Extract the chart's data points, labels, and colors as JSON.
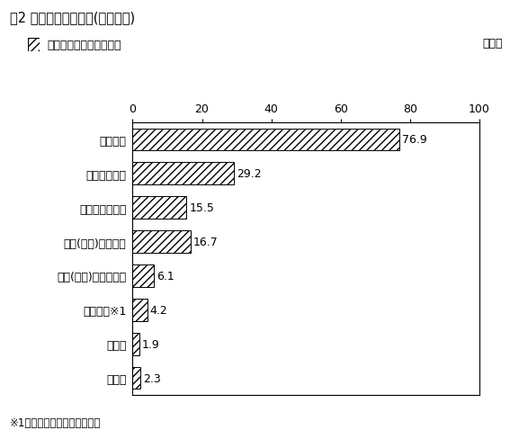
{
  "title": "問2 比較検討した住宅(複数回答)",
  "legend_square_label": "三大都市圏　令和５年度",
  "percent_label": "（％）",
  "footnote": "※1　社宅、公的住宅等を含む",
  "categories": [
    "注文住宅",
    "分譲戸建住宅",
    "分譲マンション",
    "既存(中古)戸建住宅",
    "既存(中古)マンション",
    "賃貸住宅※1",
    "その他",
    "無回答"
  ],
  "values": [
    76.9,
    29.2,
    15.5,
    16.7,
    6.1,
    4.2,
    1.9,
    2.3
  ],
  "xlim": [
    0,
    100
  ],
  "xticks": [
    0,
    20,
    40,
    60,
    80,
    100
  ],
  "hatch": "////",
  "background_color": "#ffffff",
  "border_color": "#000000",
  "title_fontsize": 10.5,
  "label_fontsize": 9,
  "tick_fontsize": 9,
  "value_fontsize": 9,
  "legend_fontsize": 9,
  "footnote_fontsize": 8.5
}
